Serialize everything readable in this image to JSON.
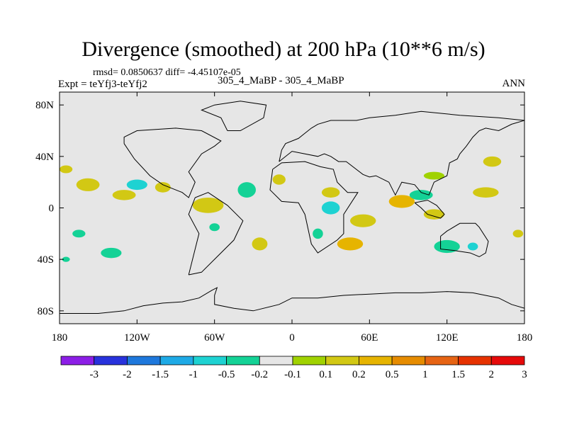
{
  "chart_data": {
    "type": "heatmap",
    "title": "Divergence (smoothed) at 200 hPa (10**6 m/s)",
    "stats_text": "rmsd= 0.0850637 diff= -4.45107e-05",
    "experiment_text": "Expt = teYfj3-teYfj2",
    "cases_text": "305_4_MaBP - 305_4_MaBP",
    "period_text": "ANN",
    "xlim": [
      -180,
      180
    ],
    "ylim": [
      -90,
      90
    ],
    "x_ticks": [
      {
        "value": -180,
        "label": "180"
      },
      {
        "value": -120,
        "label": "120W"
      },
      {
        "value": -60,
        "label": "60W"
      },
      {
        "value": 0,
        "label": "0"
      },
      {
        "value": 60,
        "label": "60E"
      },
      {
        "value": 120,
        "label": "120E"
      },
      {
        "value": 180,
        "label": "180"
      }
    ],
    "y_ticks": [
      {
        "value": 80,
        "label": "80N"
      },
      {
        "value": 40,
        "label": "40N"
      },
      {
        "value": 0,
        "label": "0"
      },
      {
        "value": -40,
        "label": "40S"
      },
      {
        "value": -80,
        "label": "80S"
      }
    ],
    "colorbar": {
      "colors": [
        "#8c1ee6",
        "#2832dc",
        "#1e78dc",
        "#1eaae6",
        "#1ed2d2",
        "#14d296",
        "#e6e6e6",
        "#a0d200",
        "#d2c814",
        "#e6b400",
        "#e68c00",
        "#e66414",
        "#e63200",
        "#e60a0a"
      ],
      "levels": [
        "-3",
        "-2",
        "-1.5",
        "-1",
        "-0.5",
        "-0.2",
        "-0.1",
        "0.1",
        "0.2",
        "0.5",
        "1",
        "1.5",
        "2",
        "3"
      ]
    },
    "colors": {
      "background": "#e6e6e6",
      "coast": "#000000"
    },
    "cells": [
      {
        "lon": -158,
        "lat": 18,
        "rx": 9,
        "ry": 5,
        "level": 8
      },
      {
        "lon": -130,
        "lat": 10,
        "rx": 9,
        "ry": 4,
        "level": 8
      },
      {
        "lon": -100,
        "lat": 16,
        "rx": 6,
        "ry": 4,
        "level": 8
      },
      {
        "lon": -65,
        "lat": 2,
        "rx": 12,
        "ry": 6,
        "level": 8
      },
      {
        "lon": -25,
        "lat": -28,
        "rx": 6,
        "ry": 5,
        "level": 8
      },
      {
        "lon": -10,
        "lat": 22,
        "rx": 5,
        "ry": 4,
        "level": 8
      },
      {
        "lon": 30,
        "lat": 12,
        "rx": 7,
        "ry": 4,
        "level": 8
      },
      {
        "lon": 55,
        "lat": -10,
        "rx": 10,
        "ry": 5,
        "level": 8
      },
      {
        "lon": 85,
        "lat": 5,
        "rx": 10,
        "ry": 5,
        "level": 9
      },
      {
        "lon": 110,
        "lat": -5,
        "rx": 8,
        "ry": 4,
        "level": 8
      },
      {
        "lon": 155,
        "lat": 36,
        "rx": 7,
        "ry": 4,
        "level": 8
      },
      {
        "lon": 150,
        "lat": 12,
        "rx": 10,
        "ry": 4,
        "level": 8
      },
      {
        "lon": 110,
        "lat": 25,
        "rx": 8,
        "ry": 3,
        "level": 7
      },
      {
        "lon": 45,
        "lat": -28,
        "rx": 10,
        "ry": 5,
        "level": 9
      },
      {
        "lon": -175,
        "lat": 30,
        "rx": 5,
        "ry": 3,
        "level": 8
      },
      {
        "lon": 175,
        "lat": -20,
        "rx": 4,
        "ry": 3,
        "level": 8
      },
      {
        "lon": 120,
        "lat": -30,
        "rx": 10,
        "ry": 5,
        "level": 5
      },
      {
        "lon": 100,
        "lat": 10,
        "rx": 9,
        "ry": 4,
        "level": 5
      },
      {
        "lon": 30,
        "lat": 0,
        "rx": 7,
        "ry": 5,
        "level": 4
      },
      {
        "lon": -35,
        "lat": 14,
        "rx": 7,
        "ry": 6,
        "level": 5
      },
      {
        "lon": -140,
        "lat": -35,
        "rx": 8,
        "ry": 4,
        "level": 5
      },
      {
        "lon": -165,
        "lat": -20,
        "rx": 5,
        "ry": 3,
        "level": 5
      },
      {
        "lon": -120,
        "lat": 18,
        "rx": 8,
        "ry": 4,
        "level": 4
      },
      {
        "lon": 140,
        "lat": -30,
        "rx": 4,
        "ry": 3,
        "level": 4
      },
      {
        "lon": 20,
        "lat": -20,
        "rx": 4,
        "ry": 4,
        "level": 5
      },
      {
        "lon": -60,
        "lat": -15,
        "rx": 4,
        "ry": 3,
        "level": 5
      },
      {
        "lon": -175,
        "lat": -40,
        "rx": 3,
        "ry": 2,
        "level": 5
      }
    ],
    "coastlines": [
      [
        [
          -180,
          -82
        ],
        [
          -150,
          -82
        ],
        [
          -130,
          -80
        ],
        [
          -115,
          -76
        ],
        [
          -100,
          -74
        ],
        [
          -85,
          -73
        ],
        [
          -72,
          -70
        ],
        [
          -62,
          -64
        ],
        [
          -58,
          -62
        ],
        [
          -60,
          -68
        ],
        [
          -60,
          -75
        ],
        [
          -45,
          -78
        ],
        [
          -30,
          -80
        ],
        [
          -10,
          -75
        ],
        [
          0,
          -70
        ],
        [
          20,
          -70
        ],
        [
          40,
          -68
        ],
        [
          60,
          -67
        ],
        [
          80,
          -66
        ],
        [
          100,
          -66
        ],
        [
          120,
          -65
        ],
        [
          140,
          -66
        ],
        [
          160,
          -70
        ],
        [
          170,
          -75
        ],
        [
          180,
          -78
        ]
      ],
      [
        [
          -80,
          -52
        ],
        [
          -72,
          -20
        ],
        [
          -80,
          -5
        ],
        [
          -75,
          8
        ],
        [
          -65,
          12
        ],
        [
          -50,
          2
        ],
        [
          -38,
          -10
        ],
        [
          -45,
          -25
        ],
        [
          -58,
          -38
        ],
        [
          -70,
          -50
        ],
        [
          -80,
          -52
        ]
      ],
      [
        [
          -130,
          50
        ],
        [
          -122,
          38
        ],
        [
          -110,
          25
        ],
        [
          -100,
          18
        ],
        [
          -85,
          12
        ],
        [
          -80,
          8
        ],
        [
          -75,
          20
        ],
        [
          -80,
          28
        ],
        [
          -70,
          42
        ],
        [
          -60,
          48
        ],
        [
          -55,
          52
        ],
        [
          -70,
          60
        ],
        [
          -90,
          62
        ],
        [
          -120,
          60
        ],
        [
          -130,
          55
        ],
        [
          -130,
          50
        ]
      ],
      [
        [
          -15,
          30
        ],
        [
          -8,
          35
        ],
        [
          10,
          36
        ],
        [
          22,
          32
        ],
        [
          32,
          30
        ],
        [
          35,
          20
        ],
        [
          43,
          12
        ],
        [
          51,
          12
        ],
        [
          40,
          -5
        ],
        [
          40,
          -20
        ],
        [
          35,
          -25
        ],
        [
          20,
          -35
        ],
        [
          15,
          -28
        ],
        [
          10,
          -5
        ],
        [
          5,
          4
        ],
        [
          -8,
          5
        ],
        [
          -17,
          14
        ],
        [
          -15,
          30
        ]
      ],
      [
        [
          -10,
          36
        ],
        [
          0,
          44
        ],
        [
          20,
          40
        ],
        [
          25,
          42
        ],
        [
          30,
          40
        ],
        [
          36,
          36
        ],
        [
          42,
          36
        ],
        [
          55,
          26
        ],
        [
          60,
          24
        ],
        [
          65,
          25
        ],
        [
          75,
          20
        ],
        [
          80,
          10
        ],
        [
          85,
          20
        ],
        [
          95,
          18
        ],
        [
          100,
          12
        ],
        [
          106,
          10
        ],
        [
          110,
          20
        ],
        [
          120,
          25
        ],
        [
          122,
          35
        ],
        [
          128,
          38
        ],
        [
          130,
          42
        ],
        [
          135,
          48
        ],
        [
          140,
          55
        ],
        [
          145,
          60
        ],
        [
          150,
          62
        ],
        [
          160,
          60
        ],
        [
          170,
          65
        ],
        [
          180,
          68
        ]
      ],
      [
        [
          -10,
          36
        ],
        [
          -8,
          45
        ],
        [
          -5,
          50
        ],
        [
          5,
          54
        ],
        [
          10,
          58
        ],
        [
          15,
          62
        ],
        [
          20,
          65
        ],
        [
          30,
          68
        ],
        [
          50,
          68
        ],
        [
          60,
          70
        ],
        [
          80,
          72
        ],
        [
          100,
          75
        ],
        [
          130,
          72
        ],
        [
          160,
          70
        ],
        [
          180,
          68
        ]
      ],
      [
        [
          115,
          -22
        ],
        [
          120,
          -18
        ],
        [
          130,
          -12
        ],
        [
          142,
          -12
        ],
        [
          145,
          -15
        ],
        [
          152,
          -26
        ],
        [
          150,
          -35
        ],
        [
          145,
          -38
        ],
        [
          138,
          -35
        ],
        [
          125,
          -33
        ],
        [
          115,
          -32
        ],
        [
          115,
          -22
        ]
      ],
      [
        [
          95,
          4
        ],
        [
          100,
          0
        ],
        [
          105,
          -5
        ],
        [
          115,
          -8
        ],
        [
          118,
          -5
        ],
        [
          112,
          2
        ],
        [
          105,
          6
        ],
        [
          95,
          4
        ]
      ],
      [
        [
          -50,
          60
        ],
        [
          -40,
          60
        ],
        [
          -22,
          70
        ],
        [
          -20,
          80
        ],
        [
          -40,
          83
        ],
        [
          -60,
          80
        ],
        [
          -70,
          76
        ],
        [
          -55,
          70
        ],
        [
          -50,
          60
        ]
      ]
    ]
  }
}
